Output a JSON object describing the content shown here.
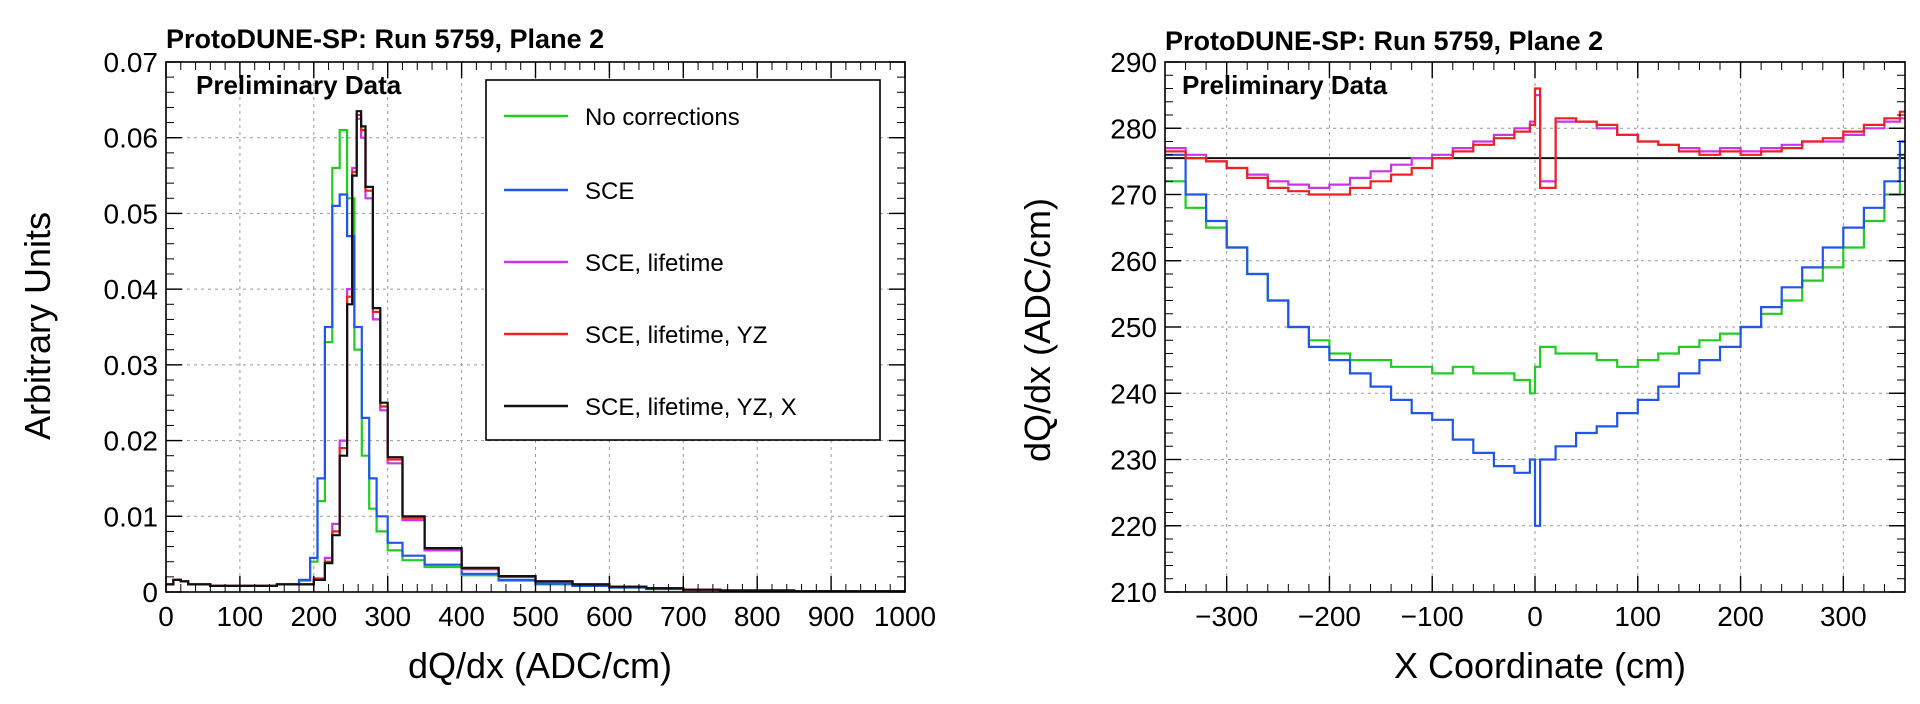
{
  "chart_data": [
    {
      "type": "line",
      "title": "ProtoDUNE-SP: Run 5759, Plane 2",
      "subtitle": "Preliminary Data",
      "xlabel": "dQ/dx (ADC/cm)",
      "ylabel": "Arbitrary Units",
      "xlim": [
        0,
        1000
      ],
      "ylim": [
        0,
        0.07
      ],
      "xticks": [
        0,
        100,
        200,
        300,
        400,
        500,
        600,
        700,
        800,
        900,
        1000
      ],
      "xtick_labels": [
        "0",
        "100",
        "200",
        "300",
        "400",
        "500",
        "600",
        "700",
        "800",
        "900",
        "1000"
      ],
      "yticks": [
        0,
        0.01,
        0.02,
        0.03,
        0.04,
        0.05,
        0.06,
        0.07
      ],
      "ytick_labels": [
        "0",
        "0.01",
        "0.02",
        "0.03",
        "0.04",
        "0.05",
        "0.06",
        "0.07"
      ],
      "grid": true,
      "legend_position": "top-right",
      "series": [
        {
          "name": "No corrections",
          "color": "#22cc22",
          "x": [
            0,
            10,
            20,
            30,
            60,
            100,
            150,
            180,
            195,
            205,
            215,
            225,
            235,
            245,
            255,
            265,
            275,
            285,
            300,
            320,
            350,
            400,
            450,
            500,
            550,
            600,
            650,
            700,
            750,
            800,
            850,
            900,
            950,
            1000
          ],
          "y": [
            0.001,
            0.0016,
            0.0014,
            0.001,
            0.0008,
            0.0008,
            0.001,
            0.0015,
            0.004,
            0.012,
            0.033,
            0.056,
            0.061,
            0.052,
            0.032,
            0.018,
            0.011,
            0.008,
            0.0055,
            0.0042,
            0.0033,
            0.0022,
            0.0015,
            0.001,
            0.0008,
            0.0006,
            0.0004,
            0.0003,
            0.0002,
            0.0002,
            0.0001,
            0.0001,
            0.0001,
            0.0001
          ]
        },
        {
          "name": "SCE",
          "color": "#2255ee",
          "x": [
            0,
            10,
            20,
            30,
            60,
            100,
            150,
            180,
            195,
            205,
            215,
            225,
            235,
            245,
            255,
            265,
            275,
            285,
            300,
            320,
            350,
            400,
            450,
            500,
            550,
            600,
            650,
            700,
            750,
            800,
            850,
            900,
            950,
            1000
          ],
          "y": [
            0.001,
            0.0016,
            0.0014,
            0.001,
            0.0008,
            0.0008,
            0.001,
            0.0016,
            0.0045,
            0.015,
            0.035,
            0.051,
            0.0525,
            0.047,
            0.035,
            0.023,
            0.015,
            0.01,
            0.0065,
            0.0048,
            0.0036,
            0.0024,
            0.0016,
            0.0011,
            0.0008,
            0.0006,
            0.0004,
            0.0003,
            0.0002,
            0.0002,
            0.0001,
            0.0001,
            0.0001,
            0.0001
          ]
        },
        {
          "name": "SCE, lifetime",
          "color": "#cc33ee",
          "x": [
            0,
            10,
            20,
            30,
            60,
            100,
            150,
            200,
            215,
            225,
            235,
            245,
            252,
            258,
            264,
            270,
            280,
            290,
            300,
            320,
            350,
            400,
            450,
            500,
            550,
            600,
            650,
            700,
            750,
            800,
            850,
            900,
            950,
            1000
          ],
          "y": [
            0.001,
            0.0016,
            0.0014,
            0.001,
            0.0008,
            0.0008,
            0.001,
            0.0018,
            0.0045,
            0.009,
            0.02,
            0.04,
            0.056,
            0.0625,
            0.06,
            0.052,
            0.036,
            0.024,
            0.017,
            0.0095,
            0.0055,
            0.003,
            0.002,
            0.0014,
            0.001,
            0.0007,
            0.0005,
            0.0003,
            0.0002,
            0.0002,
            0.0001,
            0.0001,
            0.0001,
            0.0001
          ]
        },
        {
          "name": "SCE, lifetime, YZ",
          "color": "#ee2222",
          "x": [
            0,
            10,
            20,
            30,
            60,
            100,
            150,
            200,
            215,
            225,
            235,
            245,
            252,
            258,
            264,
            270,
            280,
            290,
            300,
            320,
            350,
            400,
            450,
            500,
            550,
            600,
            650,
            700,
            750,
            800,
            850,
            900,
            950,
            1000
          ],
          "y": [
            0.001,
            0.0016,
            0.0014,
            0.001,
            0.0008,
            0.0008,
            0.001,
            0.0017,
            0.004,
            0.008,
            0.019,
            0.039,
            0.0555,
            0.063,
            0.061,
            0.053,
            0.037,
            0.0245,
            0.0175,
            0.0098,
            0.0057,
            0.0031,
            0.0021,
            0.0014,
            0.001,
            0.0007,
            0.0005,
            0.0003,
            0.0002,
            0.0002,
            0.0001,
            0.0001,
            0.0001,
            0.0001
          ]
        },
        {
          "name": "SCE, lifetime, YZ, X",
          "color": "#111111",
          "x": [
            0,
            10,
            20,
            30,
            60,
            100,
            150,
            200,
            215,
            225,
            235,
            245,
            252,
            258,
            264,
            270,
            280,
            290,
            300,
            320,
            350,
            400,
            450,
            500,
            550,
            600,
            650,
            700,
            750,
            800,
            850,
            900,
            950,
            1000
          ],
          "y": [
            0.001,
            0.0016,
            0.0014,
            0.001,
            0.0008,
            0.0008,
            0.001,
            0.0016,
            0.0038,
            0.0075,
            0.018,
            0.038,
            0.055,
            0.0635,
            0.0615,
            0.0535,
            0.0375,
            0.025,
            0.0178,
            0.01,
            0.0058,
            0.0032,
            0.0021,
            0.0014,
            0.001,
            0.0007,
            0.0005,
            0.0003,
            0.0002,
            0.0002,
            0.0001,
            0.0001,
            0.0001,
            0.0001
          ]
        }
      ]
    },
    {
      "type": "line",
      "title": "ProtoDUNE-SP: Run 5759, Plane 2",
      "subtitle": "Preliminary Data",
      "xlabel": "X Coordinate (cm)",
      "ylabel": "dQ/dx (ADC/cm)",
      "xlim": [
        -360,
        360
      ],
      "ylim": [
        210,
        290
      ],
      "xticks": [
        -300,
        -200,
        -100,
        0,
        100,
        200,
        300
      ],
      "xtick_labels": [
        "−300",
        "−200",
        "−100",
        "0",
        "100",
        "200",
        "300"
      ],
      "yticks": [
        210,
        220,
        230,
        240,
        250,
        260,
        270,
        280,
        290
      ],
      "ytick_labels": [
        "210",
        "220",
        "230",
        "240",
        "250",
        "260",
        "270",
        "280",
        "290"
      ],
      "grid": true,
      "reference_line": {
        "y": 275.5,
        "color": "#111111"
      },
      "series": [
        {
          "color": "#22cc22",
          "x": [
            -360,
            -340,
            -320,
            -300,
            -280,
            -260,
            -240,
            -220,
            -200,
            -180,
            -160,
            -140,
            -120,
            -100,
            -80,
            -60,
            -40,
            -20,
            -5,
            0,
            5,
            20,
            40,
            60,
            80,
            100,
            120,
            140,
            160,
            180,
            200,
            220,
            240,
            260,
            280,
            300,
            320,
            340,
            355
          ],
          "y": [
            272,
            268,
            265,
            262,
            258,
            254,
            250,
            248,
            246,
            245,
            245,
            244,
            244,
            243,
            244,
            243,
            243,
            242,
            240,
            244,
            247,
            246,
            246,
            245,
            244,
            245,
            246,
            247,
            248,
            249,
            250,
            252,
            254,
            257,
            259,
            262,
            266,
            270,
            276
          ]
        },
        {
          "color": "#2255ee",
          "x": [
            -360,
            -340,
            -320,
            -300,
            -280,
            -260,
            -240,
            -220,
            -200,
            -180,
            -160,
            -140,
            -120,
            -100,
            -80,
            -60,
            -40,
            -20,
            -5,
            0,
            5,
            20,
            40,
            60,
            80,
            100,
            120,
            140,
            160,
            180,
            200,
            220,
            240,
            260,
            280,
            300,
            320,
            340,
            355
          ],
          "y": [
            276,
            270,
            266,
            262,
            258,
            254,
            250,
            247,
            245,
            243,
            241,
            239,
            237,
            236,
            233,
            231,
            229,
            228,
            230,
            220,
            230,
            232,
            234,
            235,
            237,
            239,
            241,
            243,
            245,
            247,
            250,
            253,
            256,
            259,
            262,
            265,
            268,
            272,
            278
          ]
        },
        {
          "color": "#cc33ee",
          "x": [
            -360,
            -340,
            -320,
            -300,
            -280,
            -260,
            -240,
            -220,
            -200,
            -180,
            -160,
            -140,
            -120,
            -100,
            -80,
            -60,
            -40,
            -20,
            -5,
            0,
            5,
            20,
            40,
            60,
            80,
            100,
            120,
            140,
            160,
            180,
            200,
            220,
            240,
            260,
            280,
            300,
            320,
            340,
            355
          ],
          "y": [
            277,
            276,
            275,
            274,
            273,
            272,
            271.5,
            271,
            271.5,
            272.5,
            273.5,
            274.5,
            275.5,
            276,
            277,
            278,
            279,
            280,
            281,
            285,
            272,
            281,
            281,
            280,
            279,
            278,
            277.5,
            277,
            276.5,
            277,
            276.5,
            277,
            277.5,
            278,
            278,
            279,
            280,
            281,
            281.5
          ]
        },
        {
          "color": "#ee2222",
          "x": [
            -360,
            -340,
            -320,
            -300,
            -280,
            -260,
            -240,
            -220,
            -200,
            -180,
            -160,
            -140,
            -120,
            -100,
            -80,
            -60,
            -40,
            -20,
            -5,
            0,
            5,
            20,
            40,
            60,
            80,
            100,
            120,
            140,
            160,
            180,
            200,
            220,
            240,
            260,
            280,
            300,
            320,
            340,
            355
          ],
          "y": [
            276.5,
            275.5,
            275,
            274,
            272.5,
            271,
            270.5,
            270,
            270,
            271,
            272,
            273,
            274,
            275.5,
            276.5,
            277.5,
            278.5,
            279.5,
            280.5,
            286,
            271,
            281.5,
            281,
            280.5,
            279,
            278,
            277.5,
            276.5,
            276,
            276.5,
            276,
            276.5,
            277,
            278,
            278.5,
            279.5,
            280.5,
            281.5,
            282.5
          ]
        }
      ]
    }
  ]
}
